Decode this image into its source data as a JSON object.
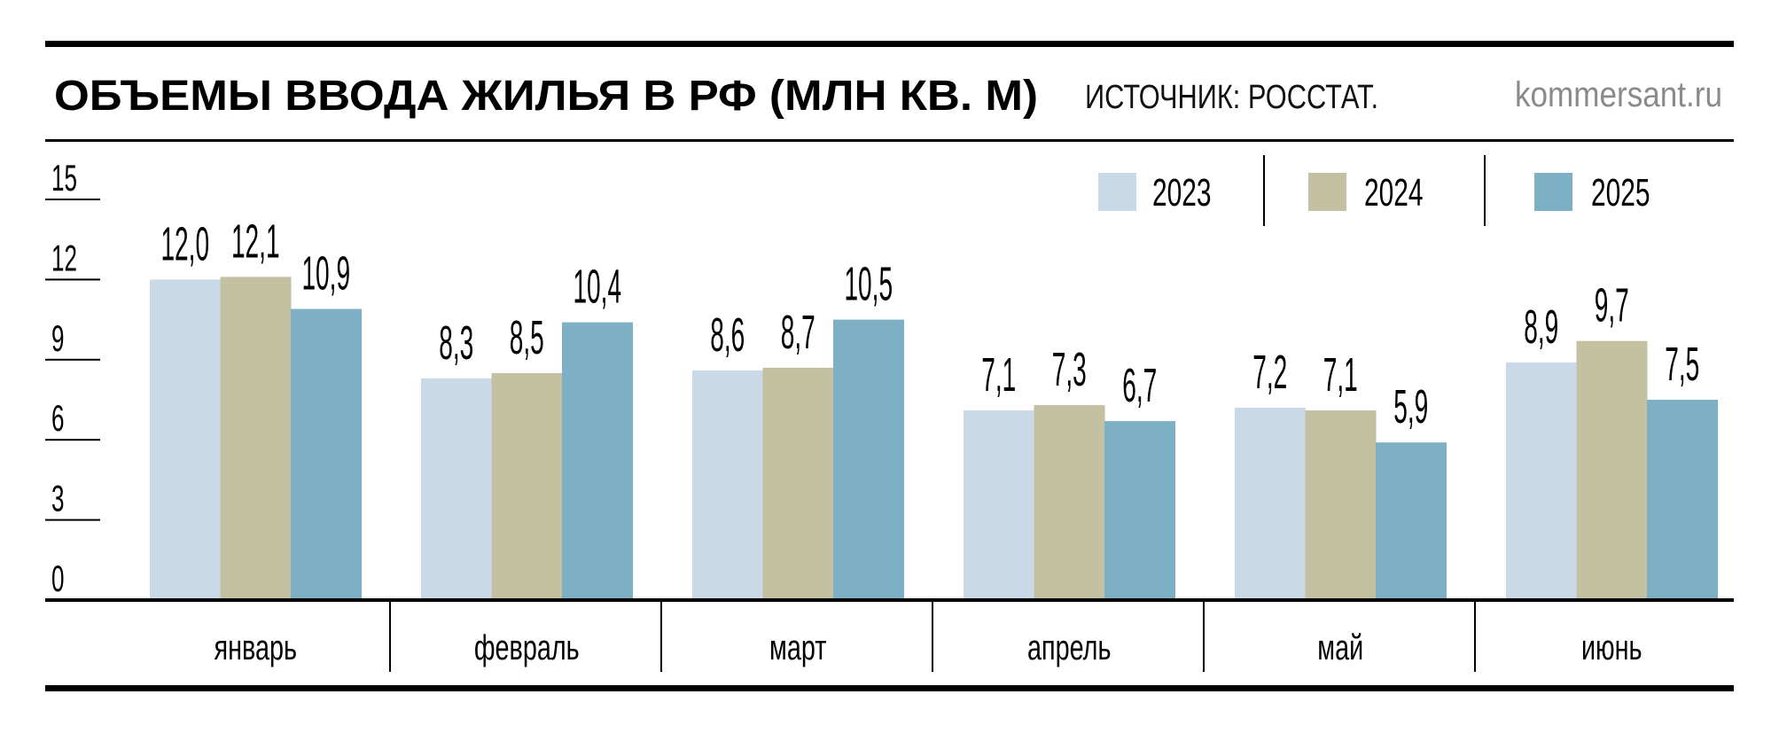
{
  "header": {
    "title": "ОБЪЕМЫ ВВОДА ЖИЛЬЯ В РФ (МЛН КВ. М)",
    "source": "ИСТОЧНИК: РОССТАТ.",
    "site": "kommersant.ru"
  },
  "chart_data": {
    "type": "bar",
    "title": "ОБЪЕМЫ ВВОДА ЖИЛЬЯ В РФ (МЛН КВ. М)",
    "xlabel": "",
    "ylabel": "млн кв. м",
    "ylim": [
      0,
      15
    ],
    "yticks": [
      "0",
      "3",
      "6",
      "9",
      "12",
      "15"
    ],
    "legend_position": "top-right",
    "categories": [
      "январь",
      "февраль",
      "март",
      "апрель",
      "май",
      "июнь"
    ],
    "series": [
      {
        "name": "2023",
        "color": "#c9d9e8",
        "values": [
          12.0,
          8.3,
          8.6,
          7.1,
          7.2,
          8.9
        ],
        "labels": [
          "12,0",
          "8,3",
          "8,6",
          "7,1",
          "7,2",
          "8,9"
        ]
      },
      {
        "name": "2024",
        "color": "#c4c1a2",
        "values": [
          12.1,
          8.5,
          8.7,
          7.3,
          7.1,
          9.7
        ],
        "labels": [
          "12,1",
          "8,5",
          "8,7",
          "7,3",
          "7,1",
          "9,7"
        ]
      },
      {
        "name": "2025",
        "color": "#7eb0c5",
        "values": [
          10.9,
          10.4,
          10.5,
          6.7,
          5.9,
          7.5
        ],
        "labels": [
          "10,9",
          "10,4",
          "10,5",
          "6,7",
          "5,9",
          "7,5"
        ]
      }
    ]
  }
}
